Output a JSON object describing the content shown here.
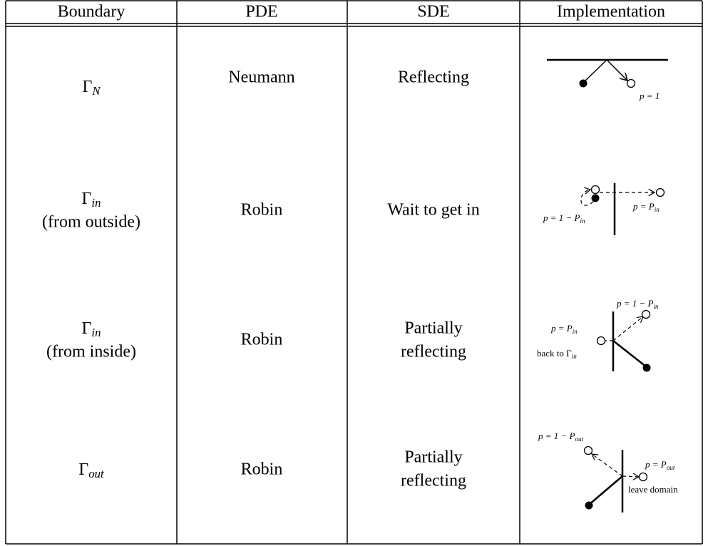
{
  "header": [
    "Boundary",
    "PDE",
    "SDE",
    "Implementation"
  ],
  "rows": [
    {
      "boundary": {
        "symbol": "Γ",
        "subscript": "N"
      },
      "pde": "Neumann",
      "sde": [
        "Reflecting"
      ],
      "implementation": {
        "labels": [
          {
            "main": "p = 1"
          }
        ]
      }
    },
    {
      "boundary": {
        "symbol": "Γ",
        "subscript": "in",
        "note": "(from outside)"
      },
      "pde": "Robin",
      "sde": [
        "Wait to get in"
      ],
      "implementation": {
        "labels": [
          {
            "main": "p = P",
            "sub": "in"
          },
          {
            "main": "p = 1 − P",
            "sub": "in"
          }
        ]
      }
    },
    {
      "boundary": {
        "symbol": "Γ",
        "subscript": "in",
        "note": "(from inside)"
      },
      "pde": "Robin",
      "sde": [
        "Partially",
        "reflecting"
      ],
      "implementation": {
        "labels": [
          {
            "main": "p = 1 − P",
            "sub": "in"
          },
          {
            "main": "p = P",
            "sub": "in"
          },
          {
            "main": "back to Γ",
            "sub": "in"
          }
        ]
      }
    },
    {
      "boundary": {
        "symbol": "Γ",
        "subscript": "out"
      },
      "pde": "Robin",
      "sde": [
        "Partially",
        "reflecting"
      ],
      "implementation": {
        "labels": [
          {
            "main": "p = 1 − P",
            "sub": "out"
          },
          {
            "main": "p = P",
            "sub": "out"
          },
          {
            "main": "leave domain"
          }
        ]
      }
    }
  ]
}
